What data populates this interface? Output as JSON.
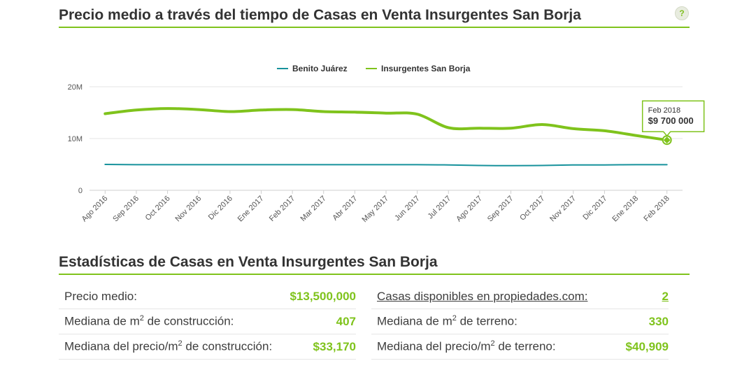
{
  "header": {
    "title": "Precio medio a través del tiempo de Casas en Venta Insurgentes San Borja",
    "help_label": "?"
  },
  "chart_data": {
    "type": "line",
    "title": "Precio medio a través del tiempo de Casas en Venta Insurgentes San Borja",
    "categories": [
      "Ago 2016",
      "Sep 2016",
      "Oct 2016",
      "Nov 2016",
      "Dic 2016",
      "Ene 2017",
      "Feb 2017",
      "Mar 2017",
      "Abr 2017",
      "May 2017",
      "Jun 2017",
      "Jul 2017",
      "Ago 2017",
      "Sep 2017",
      "Oct 2017",
      "Nov 2017",
      "Dic 2017",
      "Ene 2018",
      "Feb 2018"
    ],
    "series": [
      {
        "name": "Benito Juárez",
        "color": "#17929c",
        "values": [
          5.0,
          4.95,
          4.95,
          4.95,
          4.95,
          4.95,
          4.95,
          4.95,
          4.95,
          4.95,
          4.95,
          4.9,
          4.8,
          4.75,
          4.8,
          4.9,
          4.9,
          4.95,
          4.95
        ]
      },
      {
        "name": "Insurgentes San Borja",
        "color": "#7fc31c",
        "values": [
          14.8,
          15.5,
          15.8,
          15.6,
          15.2,
          15.5,
          15.6,
          15.2,
          15.1,
          14.9,
          14.7,
          12.1,
          12.0,
          12.0,
          12.7,
          11.9,
          11.5,
          10.6,
          9.7
        ]
      }
    ],
    "yticks": [
      "0",
      "10M",
      "20M"
    ],
    "ytick_values": [
      0,
      10,
      20
    ],
    "ylim": [
      0,
      20
    ],
    "tooltip": {
      "date": "Feb 2018",
      "value": "$9 700 000"
    },
    "legend": "top-center",
    "grid": true
  },
  "stats": {
    "title": "Estadísticas de Casas en Venta Insurgentes San Borja",
    "left": [
      {
        "label": "Precio medio:",
        "value": "$13,500,000"
      },
      {
        "label_pre": "Mediana de m",
        "label_sup": "2",
        "label_post": " de construcción:",
        "value": "407"
      },
      {
        "label_pre": "Mediana del precio/m",
        "label_sup": "2",
        "label_post": " de construcción:",
        "value": "$33,170"
      }
    ],
    "right": [
      {
        "label": "Casas disponibles en propiedades.com:",
        "value": "2"
      },
      {
        "label_pre": "Mediana de m",
        "label_sup": "2",
        "label_post": " de terreno:",
        "value": "330"
      },
      {
        "label_pre": "Mediana del precio/m",
        "label_sup": "2",
        "label_post": " de terreno:",
        "value": "$40,909"
      }
    ]
  }
}
